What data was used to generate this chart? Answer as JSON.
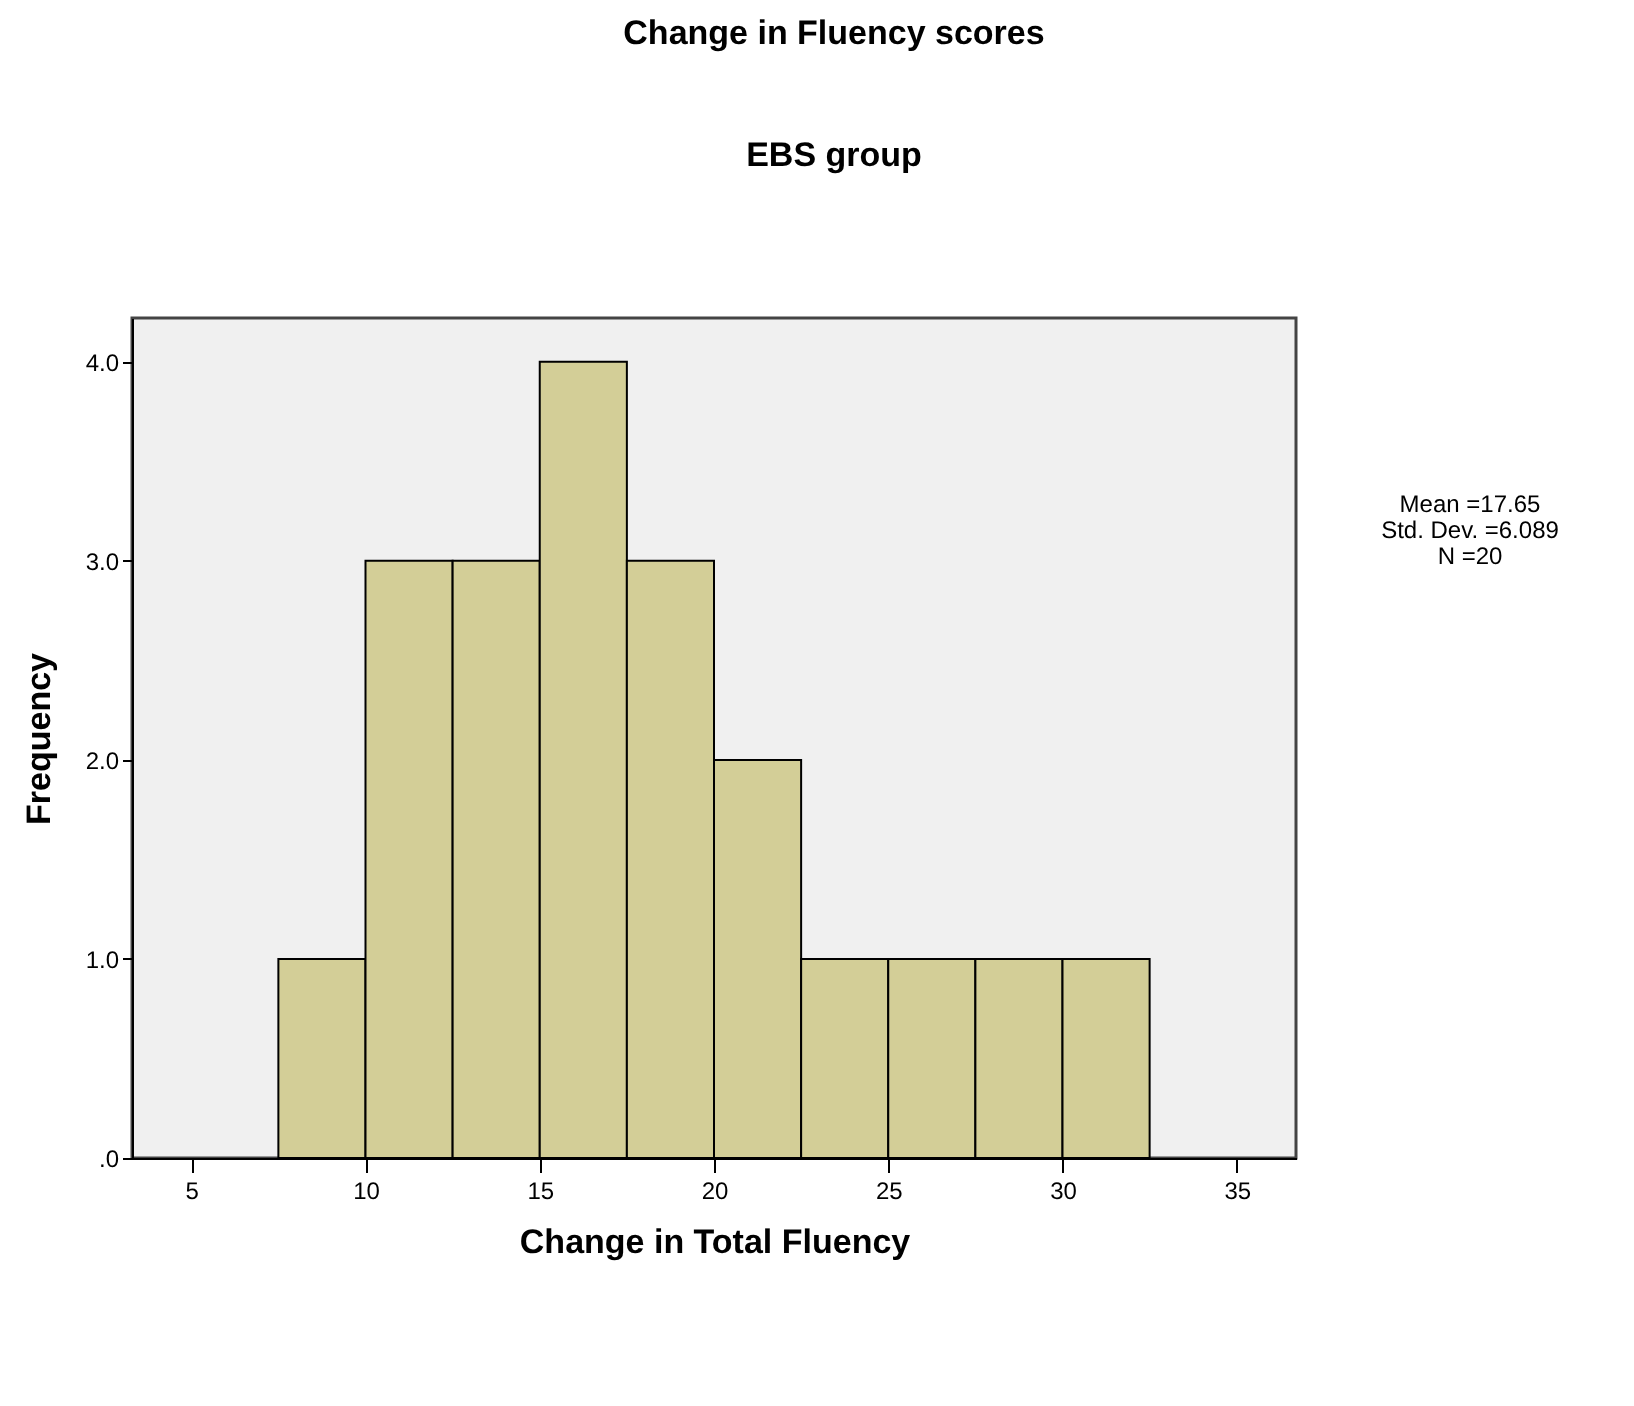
{
  "chart_data": {
    "type": "histogram",
    "title": "Change in Fluency scores",
    "subtitle": "EBS group",
    "xlabel": "Change in Total Fluency",
    "ylabel": "Frequency",
    "bins": [
      7.5,
      10,
      12.5,
      15,
      17.5,
      20,
      22.5,
      25,
      27.5,
      30,
      32.5
    ],
    "values": [
      1,
      3,
      3,
      4,
      3,
      2,
      1,
      1,
      1,
      1
    ],
    "color": "#d3ce97",
    "xlim": [
      3.3,
      36.7
    ],
    "xticks": [
      5,
      10,
      15,
      20,
      25,
      30,
      35
    ],
    "ylim": [
      0,
      4.22
    ],
    "yticks": [
      {
        "value": 0,
        "label": ".0"
      },
      {
        "value": 1,
        "label": "1.0"
      },
      {
        "value": 2,
        "label": "2.0"
      },
      {
        "value": 3,
        "label": "3.0"
      },
      {
        "value": 4,
        "label": "4.0"
      }
    ],
    "annotations": [
      "Mean =17.65",
      "Std. Dev. =6.089",
      "N =20"
    ]
  }
}
